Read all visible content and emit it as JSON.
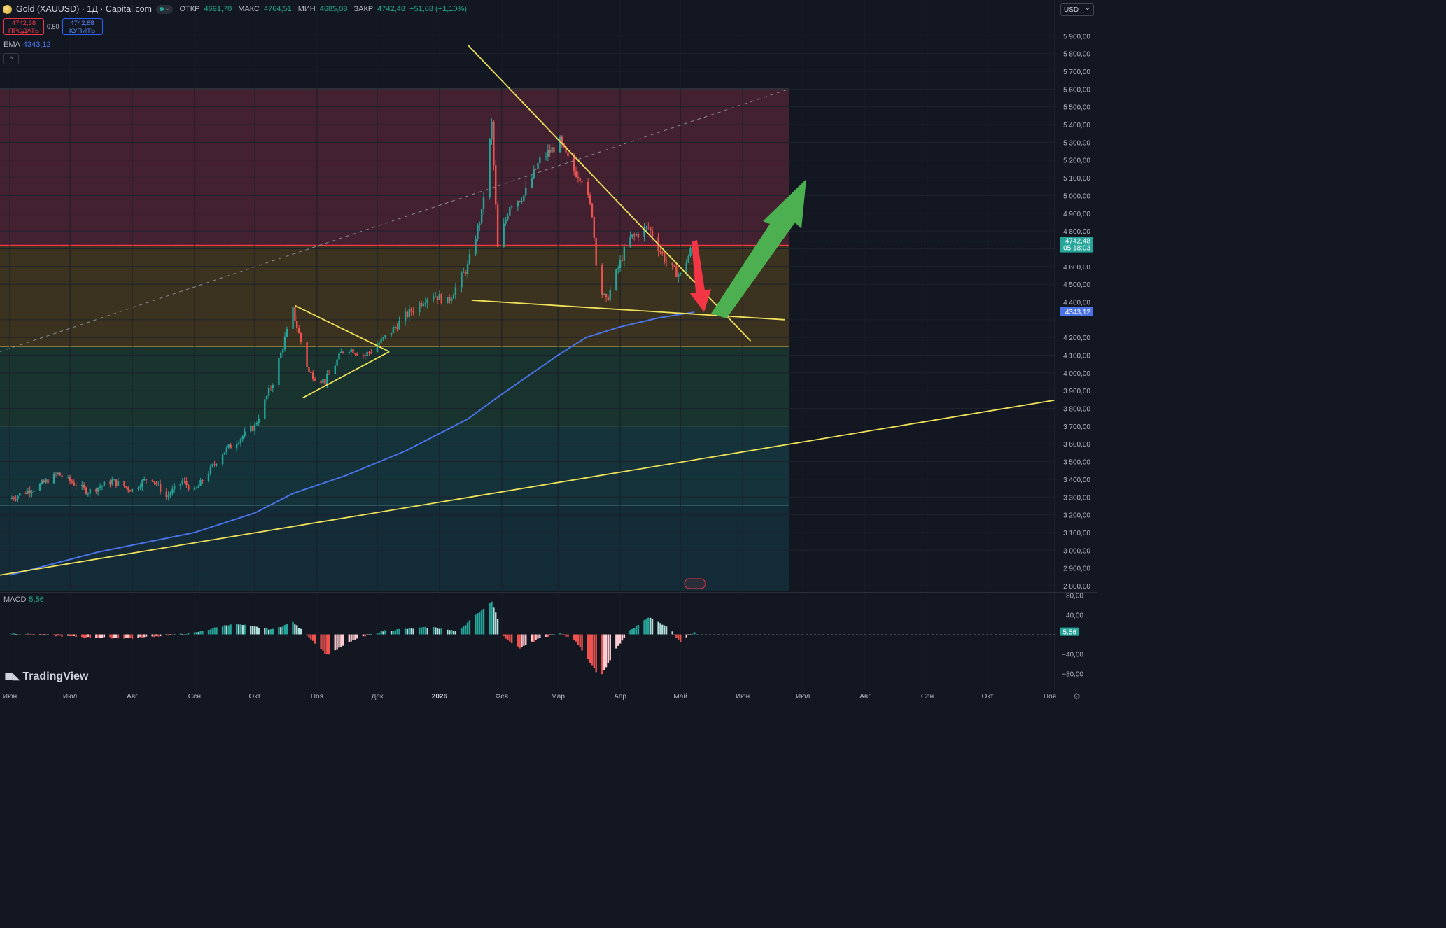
{
  "header": {
    "symbol": "Gold (XAUUSD) · 1Д · Capital.com",
    "o_label": "ОТКР",
    "o_value": "4691,70",
    "h_label": "МАКС",
    "h_value": "4764,51",
    "l_label": "МИН",
    "l_value": "4685,08",
    "c_label": "ЗАКР",
    "c_value": "4742,48",
    "change": "+51,68 (+1,10%)"
  },
  "trade": {
    "sell_price": "4742,38",
    "sell_label": "ПРОДАТЬ",
    "spread": "0,50",
    "buy_price": "4742,88",
    "buy_label": "КУПИТЬ"
  },
  "indicators": {
    "ema_label": "EMA",
    "ema_value": "4343,12",
    "macd_label": "MACD",
    "macd_value": "5,56"
  },
  "currency": "USD",
  "brand": "TradingView",
  "colors": {
    "bg": "#131722",
    "up": "#26a69a",
    "down": "#ef5350",
    "ema": "#4a73e8",
    "trend": "#f0e15a",
    "price_tag": "#26a69a",
    "arrow_up": "#4caf50",
    "arrow_down": "#f23645"
  },
  "chart_data": [
    {
      "type": "candlestick",
      "series_name": "Gold (XAUUSD)",
      "x_ticks": [
        "Июн",
        "Июл",
        "Авг",
        "Сен",
        "Окт",
        "Ноя",
        "Дек",
        "2026",
        "Фев",
        "Мар",
        "Апр",
        "Май",
        "Июн",
        "Июл",
        "Авг",
        "Сен",
        "Окт",
        "Ноя"
      ],
      "y_ticks": [
        "5 900,00",
        "5 800,00",
        "5 700,00",
        "5 600,00",
        "5 500,00",
        "5 400,00",
        "5 300,00",
        "5 200,00",
        "5 100,00",
        "5 000,00",
        "4 900,00",
        "4 800,00",
        "4 600,00",
        "4 500,00",
        "4 400,00",
        "4 200,00",
        "4 100,00",
        "4 000,00",
        "3 900,00",
        "3 800,00",
        "3 700,00",
        "3 600,00",
        "3 500,00",
        "3 400,00",
        "3 300,00",
        "3 200,00",
        "3 100,00",
        "3 000,00",
        "2 900,00",
        "2 800,00"
      ],
      "ylim": [
        2760,
        5960
      ],
      "last_price": {
        "value": 4742.48,
        "label": "4742,48",
        "countdown": "05:18:03"
      },
      "ema_price": {
        "value": 4343.12,
        "label": "4343,12"
      },
      "close_path": [
        {
          "date": "2025-06-01",
          "value": 3290
        },
        {
          "date": "2025-06-15",
          "value": 3360
        },
        {
          "date": "2025-06-25",
          "value": 3430
        },
        {
          "date": "2025-07-10",
          "value": 3330
        },
        {
          "date": "2025-07-22",
          "value": 3390
        },
        {
          "date": "2025-08-01",
          "value": 3340
        },
        {
          "date": "2025-08-10",
          "value": 3420
        },
        {
          "date": "2025-08-18",
          "value": 3300
        },
        {
          "date": "2025-08-26",
          "value": 3390
        },
        {
          "date": "2025-09-01",
          "value": 3330
        },
        {
          "date": "2025-09-15",
          "value": 3550
        },
        {
          "date": "2025-10-01",
          "value": 3700
        },
        {
          "date": "2025-10-10",
          "value": 3950
        },
        {
          "date": "2025-10-20",
          "value": 4350
        },
        {
          "date": "2025-10-28",
          "value": 4000
        },
        {
          "date": "2025-11-05",
          "value": 3950
        },
        {
          "date": "2025-11-15",
          "value": 4150
        },
        {
          "date": "2025-11-25",
          "value": 4100
        },
        {
          "date": "2025-12-05",
          "value": 4200
        },
        {
          "date": "2025-12-15",
          "value": 4320
        },
        {
          "date": "2025-12-28",
          "value": 4450
        },
        {
          "date": "2026-01-05",
          "value": 4400
        },
        {
          "date": "2026-01-15",
          "value": 4600
        },
        {
          "date": "2026-01-22",
          "value": 4900
        },
        {
          "date": "2026-01-27",
          "value": 5400
        },
        {
          "date": "2026-01-30",
          "value": 4700
        },
        {
          "date": "2026-02-05",
          "value": 4950
        },
        {
          "date": "2026-02-12",
          "value": 5000
        },
        {
          "date": "2026-02-20",
          "value": 5200
        },
        {
          "date": "2026-03-02",
          "value": 5300
        },
        {
          "date": "2026-03-08",
          "value": 5150
        },
        {
          "date": "2026-03-13",
          "value": 5100
        },
        {
          "date": "2026-03-18",
          "value": 4900
        },
        {
          "date": "2026-03-21",
          "value": 4500
        },
        {
          "date": "2026-03-25",
          "value": 4400
        },
        {
          "date": "2026-04-05",
          "value": 4750
        },
        {
          "date": "2026-04-15",
          "value": 4820
        },
        {
          "date": "2026-04-25",
          "value": 4600
        },
        {
          "date": "2026-05-01",
          "value": 4550
        },
        {
          "date": "2026-05-08",
          "value": 4742
        }
      ],
      "ema_path": [
        {
          "date": "2025-06-01",
          "value": 2860
        },
        {
          "date": "2025-07-15",
          "value": 2990
        },
        {
          "date": "2025-09-01",
          "value": 3100
        },
        {
          "date": "2025-10-01",
          "value": 3210
        },
        {
          "date": "2025-10-20",
          "value": 3320
        },
        {
          "date": "2025-11-15",
          "value": 3420
        },
        {
          "date": "2025-12-15",
          "value": 3560
        },
        {
          "date": "2026-01-15",
          "value": 3740
        },
        {
          "date": "2026-02-01",
          "value": 3880
        },
        {
          "date": "2026-02-15",
          "value": 3990
        },
        {
          "date": "2026-03-01",
          "value": 4100
        },
        {
          "date": "2026-03-15",
          "value": 4200
        },
        {
          "date": "2026-04-01",
          "value": 4260
        },
        {
          "date": "2026-04-20",
          "value": 4310
        },
        {
          "date": "2026-05-08",
          "value": 4343
        }
      ],
      "levels": [
        {
          "value": 5600,
          "band_to": 4720,
          "color": "#6b2a3c"
        },
        {
          "value": 4720,
          "band_to": 4150,
          "color": "#5c4a1e"
        },
        {
          "value": 4150,
          "band_to": 3700,
          "color": "#1f4a3a"
        },
        {
          "value": 3700,
          "band_to": 3255,
          "color": "#174a4f"
        },
        {
          "value": 3255,
          "band_to": 2760,
          "color": "#163e4a"
        }
      ]
    },
    {
      "type": "histogram",
      "series_name": "MACD",
      "ylim": [
        -100,
        100
      ],
      "y_ticks": [
        "80,00",
        "40,00",
        "−40,00",
        "−80,00"
      ],
      "last_value_label": "5,56",
      "profile": [
        {
          "date": "2025-06-01",
          "value": 2
        },
        {
          "date": "2025-07-10",
          "value": -6
        },
        {
          "date": "2025-08-01",
          "value": -8
        },
        {
          "date": "2025-09-01",
          "value": 3
        },
        {
          "date": "2025-09-20",
          "value": 22
        },
        {
          "date": "2025-10-10",
          "value": 10
        },
        {
          "date": "2025-10-20",
          "value": 25
        },
        {
          "date": "2025-10-28",
          "value": -5
        },
        {
          "date": "2025-11-06",
          "value": -42
        },
        {
          "date": "2025-11-20",
          "value": -10
        },
        {
          "date": "2025-12-05",
          "value": 8
        },
        {
          "date": "2025-12-28",
          "value": 15
        },
        {
          "date": "2026-01-10",
          "value": 6
        },
        {
          "date": "2026-01-27",
          "value": 68
        },
        {
          "date": "2026-02-02",
          "value": -5
        },
        {
          "date": "2026-02-10",
          "value": -28
        },
        {
          "date": "2026-02-20",
          "value": -8
        },
        {
          "date": "2026-03-02",
          "value": 3
        },
        {
          "date": "2026-03-10",
          "value": -15
        },
        {
          "date": "2026-03-22",
          "value": -88
        },
        {
          "date": "2026-03-30",
          "value": -30
        },
        {
          "date": "2026-04-05",
          "value": 5
        },
        {
          "date": "2026-04-15",
          "value": 35
        },
        {
          "date": "2026-04-25",
          "value": 15
        },
        {
          "date": "2026-05-01",
          "value": -15
        },
        {
          "date": "2026-05-08",
          "value": 5.56
        }
      ]
    }
  ]
}
